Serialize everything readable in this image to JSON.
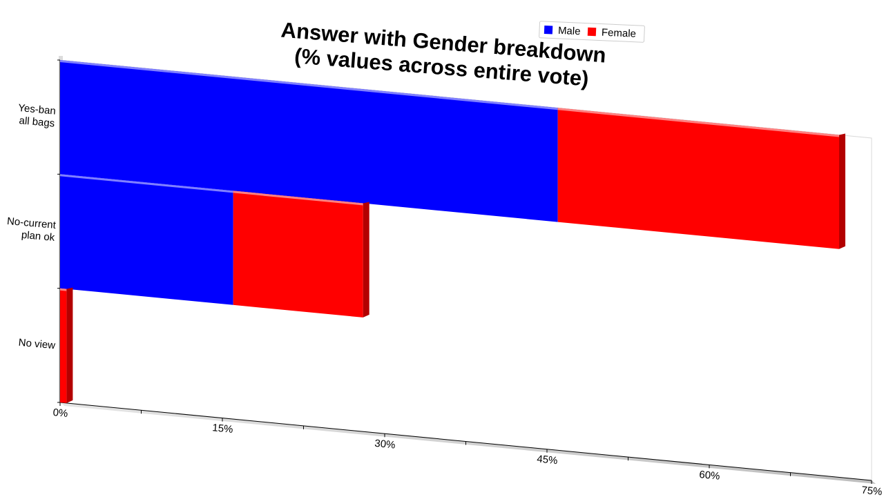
{
  "chart_data": {
    "type": "bar",
    "orientation": "horizontal",
    "stacked": true,
    "title": "Answer with Gender breakdown",
    "subtitle": "(% values across entire vote)",
    "categories": [
      "Yes-ban all bags",
      "No-current plan ok",
      "No view"
    ],
    "category_label_lines": [
      [
        "Yes-ban",
        "all bags"
      ],
      [
        "No-current",
        "plan ok"
      ],
      [
        "No view"
      ]
    ],
    "series": [
      {
        "name": "Male",
        "color": "#0000ff",
        "values": [
          46,
          16,
          0
        ]
      },
      {
        "name": "Female",
        "color": "#ff0000",
        "values": [
          26,
          12,
          0.6
        ]
      }
    ],
    "xlim": [
      0,
      75
    ],
    "x_ticks": [
      0,
      15,
      30,
      45,
      60,
      75
    ],
    "x_tick_labels": [
      "0%",
      "15%",
      "30%",
      "45%",
      "60%",
      "75%"
    ],
    "legend_position": "top-right",
    "grid": false
  }
}
